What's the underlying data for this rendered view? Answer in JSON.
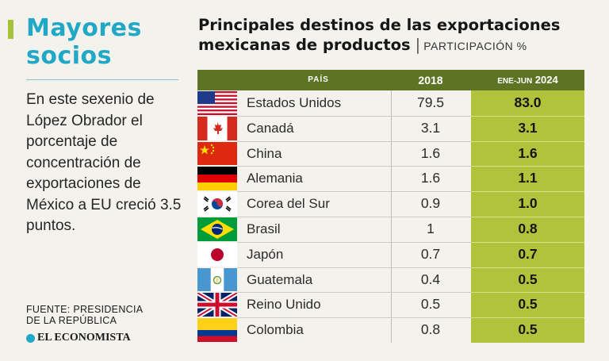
{
  "sidebar": {
    "title_line1": "Mayores",
    "title_line2": "socios",
    "body": "En este sexenio de López Obrador el porcentaje de concentración de exportaciones de México a EU creció 3.5 puntos.",
    "source_line1": "FUENTE: PRESIDENCIA",
    "source_line2": "DE LA REPÚBLICA",
    "brand": "EL ECONOMISTA"
  },
  "colors": {
    "accent": "#a7c23a",
    "title": "#22a8c7",
    "header": "#5c7424",
    "highlight_column": "#b1c23b"
  },
  "chart_data": {
    "type": "table",
    "title_line1": "Principales destinos de las exportaciones",
    "title_line2": "mexicanas de productos",
    "subtitle": "PARTICIPACIÓN %",
    "columns": [
      "PAÍS",
      "2018",
      "ENE-JUN",
      "2024"
    ],
    "rows": [
      {
        "country": "Estados Unidos",
        "flag": "usa-flag-icon",
        "v2018": "79.5",
        "v2024": "83.0"
      },
      {
        "country": "Canadá",
        "flag": "canada-flag-icon",
        "v2018": "3.1",
        "v2024": "3.1"
      },
      {
        "country": "China",
        "flag": "china-flag-icon",
        "v2018": "1.6",
        "v2024": "1.6"
      },
      {
        "country": "Alemania",
        "flag": "germany-flag-icon",
        "v2018": "1.6",
        "v2024": "1.1"
      },
      {
        "country": "Corea del Sur",
        "flag": "south-korea-flag-icon",
        "v2018": "0.9",
        "v2024": "1.0"
      },
      {
        "country": "Brasil",
        "flag": "brazil-flag-icon",
        "v2018": "1",
        "v2024": "0.8"
      },
      {
        "country": "Japón",
        "flag": "japan-flag-icon",
        "v2018": "0.7",
        "v2024": "0.7"
      },
      {
        "country": "Guatemala",
        "flag": "guatemala-flag-icon",
        "v2018": "0.4",
        "v2024": "0.5"
      },
      {
        "country": "Reino Unido",
        "flag": "uk-flag-icon",
        "v2018": "0.5",
        "v2024": "0.5"
      },
      {
        "country": "Colombia",
        "flag": "colombia-flag-icon",
        "v2018": "0.8",
        "v2024": "0.5"
      }
    ]
  }
}
